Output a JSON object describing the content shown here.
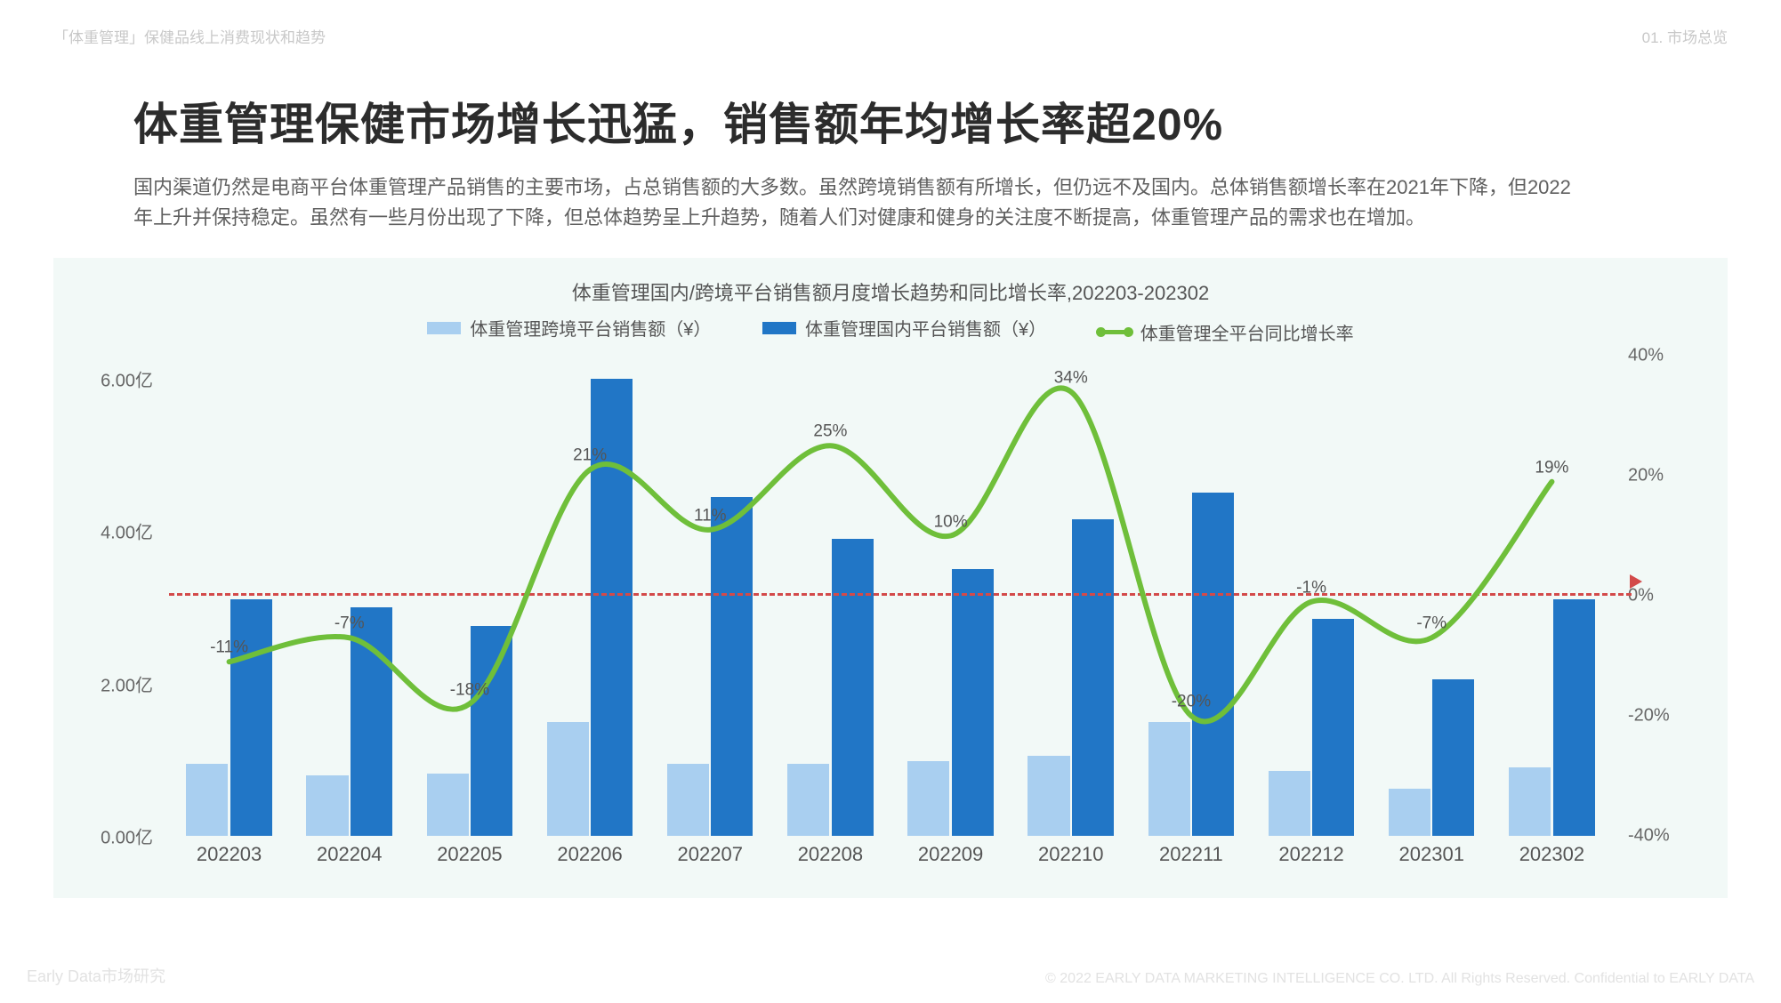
{
  "header": {
    "breadcrumb": "「体重管理」保健品线上消费现状和趋势",
    "section": "01. 市场总览"
  },
  "title": "体重管理保健市场增长迅猛，销售额年均增长率超20%",
  "description": "国内渠道仍然是电商平台体重管理产品销售的主要市场，占总销售额的大多数。虽然跨境销售额有所增长，但仍远不及国内。总体销售额增长率在2021年下降，但2022年上升并保持稳定。虽然有一些月份出现了下降，但总体趋势呈上升趋势，随着人们对健康和健身的关注度不断提高，体重管理产品的需求也在增加。",
  "chart": {
    "type": "grouped-bar-with-line",
    "title": "体重管理国内/跨境平台销售额月度增长趋势和同比增长率,202203-202302",
    "background_color": "#f2f9f7",
    "legend": {
      "series1": "体重管理跨境平台销售额（¥）",
      "series2": "体重管理国内平台销售额（¥）",
      "series3": "体重管理全平台同比增长率"
    },
    "colors": {
      "bar_light": "#a9cff0",
      "bar_dark": "#2176c6",
      "line": "#6fbf3a",
      "zero_line": "#d34a4a",
      "grid_text": "#666666"
    },
    "left_axis": {
      "min": 0.0,
      "max": 6.3,
      "ticks": [
        0.0,
        2.0,
        4.0,
        6.0
      ],
      "tick_labels": [
        "0.00亿",
        "2.00亿",
        "4.00亿",
        "6.00亿"
      ]
    },
    "right_axis": {
      "min": -40,
      "max": 40,
      "ticks": [
        -40,
        -20,
        0,
        20,
        40
      ],
      "tick_labels": [
        "-40%",
        "-20%",
        "0%",
        "20%",
        "40%"
      ]
    },
    "categories": [
      "202203",
      "202204",
      "202205",
      "202206",
      "202207",
      "202208",
      "202209",
      "202210",
      "202211",
      "202212",
      "202301",
      "202302"
    ],
    "bar_light_values": [
      0.95,
      0.8,
      0.82,
      1.5,
      0.95,
      0.95,
      0.98,
      1.05,
      1.5,
      0.85,
      0.62,
      0.9
    ],
    "bar_dark_values": [
      3.1,
      3.0,
      2.75,
      6.0,
      4.45,
      3.9,
      3.5,
      4.15,
      4.5,
      2.85,
      2.05,
      3.1
    ],
    "line_values_pct": [
      -11,
      -7,
      -18,
      21,
      11,
      25,
      10,
      34,
      -20,
      -1,
      -7,
      19
    ],
    "line_labels": [
      "-11%",
      "-7%",
      "-18%",
      "21%",
      "11%",
      "25%",
      "10%",
      "34%",
      "-20%",
      "-1%",
      "-7%",
      "19%"
    ],
    "bar_group_width_pct": 6.2,
    "bar_inner_width_pct": 2.9,
    "bar_gap_pct": 0.15,
    "x_label_fontsize": 22,
    "y_label_fontsize": 20,
    "pct_label_fontsize": 19,
    "line_width": 6
  },
  "footer": {
    "left": "Early Data市场研究",
    "right": "© 2022 EARLY DATA MARKETING INTELLIGENCE CO. LTD. All Rights Reserved. Confidential to EARLY DATA"
  }
}
